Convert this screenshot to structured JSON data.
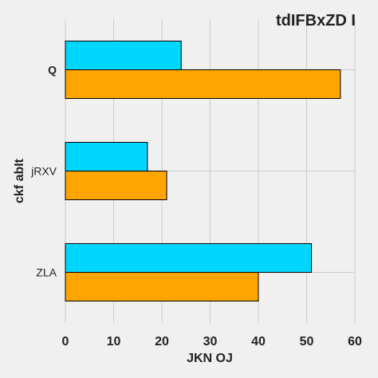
{
  "chart_data": {
    "type": "bar",
    "orientation": "horizontal",
    "title": "tdIFBxZD I",
    "xlabel": "JKN OJ",
    "ylabel": "ckf abIt",
    "categories": [
      "ZLA",
      "jRXV",
      "Q"
    ],
    "series": [
      {
        "values": [
          40,
          21,
          57
        ],
        "color": "#ffa500"
      },
      {
        "values": [
          51,
          17,
          24
        ],
        "color": "#00d7ff"
      }
    ],
    "xlim": [
      0,
      60
    ],
    "xticks": [
      "0",
      "10",
      "20",
      "30",
      "40",
      "50",
      "60"
    ],
    "grid": true,
    "legend": "none"
  }
}
